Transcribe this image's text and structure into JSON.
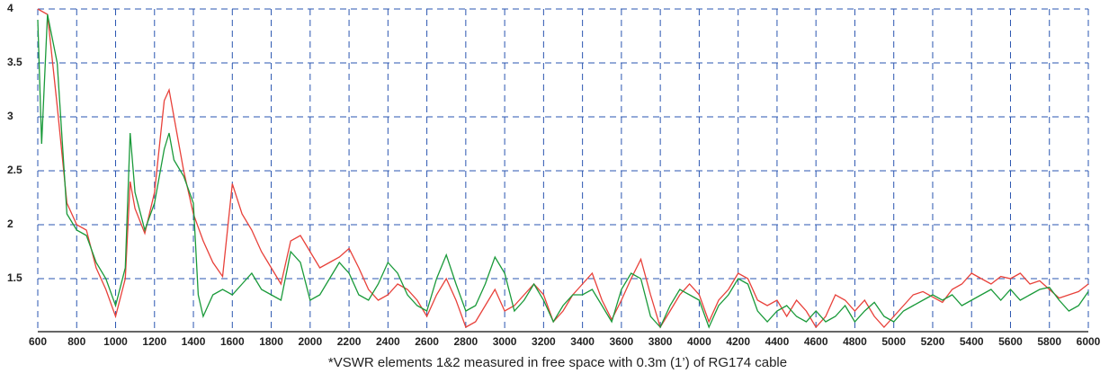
{
  "chart_data": {
    "type": "line",
    "caption": "*VSWR  elements 1&2 measured in free space with 0.3m (1’) of RG174 cable",
    "xlim": [
      600,
      6000
    ],
    "ylim": [
      1,
      4
    ],
    "xticks": [
      600,
      800,
      1000,
      1200,
      1400,
      1600,
      1800,
      2000,
      2200,
      2400,
      2600,
      2800,
      3000,
      3200,
      3400,
      3600,
      3800,
      4000,
      4200,
      4400,
      4600,
      4800,
      5000,
      5200,
      5400,
      5600,
      5800,
      6000
    ],
    "yticks": [
      1.5,
      2,
      2.5,
      3,
      3.5,
      4
    ],
    "grid": true,
    "grid_color": "#2a55b0",
    "series": [
      {
        "color": "#e8413a",
        "x": [
          600,
          650,
          700,
          750,
          800,
          850,
          900,
          950,
          1000,
          1050,
          1075,
          1100,
          1150,
          1200,
          1250,
          1275,
          1300,
          1350,
          1400,
          1450,
          1500,
          1550,
          1600,
          1650,
          1700,
          1750,
          1800,
          1850,
          1900,
          1950,
          2000,
          2050,
          2100,
          2150,
          2200,
          2250,
          2300,
          2350,
          2400,
          2450,
          2500,
          2550,
          2600,
          2650,
          2700,
          2750,
          2800,
          2850,
          2900,
          2950,
          3000,
          3050,
          3100,
          3150,
          3200,
          3250,
          3300,
          3350,
          3400,
          3450,
          3500,
          3550,
          3600,
          3650,
          3700,
          3750,
          3800,
          3850,
          3900,
          3950,
          4000,
          4050,
          4100,
          4150,
          4200,
          4250,
          4300,
          4350,
          4400,
          4450,
          4500,
          4550,
          4600,
          4650,
          4700,
          4750,
          4800,
          4850,
          4900,
          4950,
          5000,
          5050,
          5100,
          5150,
          5200,
          5250,
          5300,
          5350,
          5400,
          5450,
          5500,
          5550,
          5600,
          5650,
          5700,
          5750,
          5800,
          5850,
          5900,
          5950,
          6000
        ],
        "values": [
          4.0,
          3.95,
          3.1,
          2.2,
          2.0,
          1.95,
          1.6,
          1.4,
          1.15,
          1.5,
          2.4,
          2.15,
          1.92,
          2.3,
          3.15,
          3.25,
          3.0,
          2.5,
          2.1,
          1.85,
          1.65,
          1.52,
          2.38,
          2.1,
          1.95,
          1.75,
          1.6,
          1.45,
          1.85,
          1.9,
          1.75,
          1.6,
          1.65,
          1.7,
          1.78,
          1.6,
          1.4,
          1.3,
          1.35,
          1.45,
          1.4,
          1.3,
          1.15,
          1.35,
          1.5,
          1.3,
          1.05,
          1.1,
          1.25,
          1.4,
          1.2,
          1.25,
          1.35,
          1.45,
          1.35,
          1.1,
          1.2,
          1.35,
          1.45,
          1.55,
          1.3,
          1.12,
          1.3,
          1.5,
          1.68,
          1.35,
          1.05,
          1.2,
          1.35,
          1.45,
          1.35,
          1.1,
          1.3,
          1.4,
          1.55,
          1.5,
          1.3,
          1.25,
          1.3,
          1.15,
          1.3,
          1.2,
          1.05,
          1.15,
          1.35,
          1.3,
          1.2,
          1.3,
          1.15,
          1.05,
          1.15,
          1.25,
          1.35,
          1.38,
          1.33,
          1.28,
          1.4,
          1.45,
          1.55,
          1.5,
          1.45,
          1.52,
          1.5,
          1.55,
          1.45,
          1.48,
          1.4,
          1.32,
          1.35,
          1.38,
          1.45
        ]
      },
      {
        "color": "#1a9a3a",
        "x": [
          600,
          620,
          650,
          700,
          750,
          800,
          850,
          900,
          950,
          1000,
          1050,
          1075,
          1100,
          1150,
          1200,
          1250,
          1275,
          1300,
          1350,
          1400,
          1425,
          1450,
          1500,
          1550,
          1600,
          1650,
          1700,
          1750,
          1800,
          1850,
          1900,
          1950,
          2000,
          2050,
          2100,
          2150,
          2200,
          2250,
          2300,
          2350,
          2400,
          2450,
          2500,
          2550,
          2600,
          2650,
          2700,
          2750,
          2800,
          2850,
          2900,
          2950,
          3000,
          3050,
          3100,
          3150,
          3200,
          3250,
          3300,
          3350,
          3400,
          3450,
          3500,
          3550,
          3600,
          3650,
          3700,
          3750,
          3800,
          3850,
          3900,
          3950,
          4000,
          4050,
          4100,
          4150,
          4200,
          4250,
          4300,
          4350,
          4400,
          4450,
          4500,
          4550,
          4600,
          4650,
          4700,
          4750,
          4800,
          4850,
          4900,
          4950,
          5000,
          5050,
          5100,
          5150,
          5200,
          5250,
          5300,
          5350,
          5400,
          5450,
          5500,
          5550,
          5600,
          5650,
          5700,
          5750,
          5800,
          5850,
          5900,
          5950,
          6000
        ],
        "values": [
          3.9,
          2.75,
          3.95,
          3.5,
          2.1,
          1.95,
          1.9,
          1.65,
          1.5,
          1.25,
          1.6,
          2.85,
          2.3,
          1.95,
          2.2,
          2.7,
          2.85,
          2.6,
          2.45,
          2.2,
          1.35,
          1.15,
          1.35,
          1.4,
          1.35,
          1.45,
          1.55,
          1.4,
          1.35,
          1.3,
          1.75,
          1.65,
          1.3,
          1.35,
          1.5,
          1.65,
          1.55,
          1.35,
          1.3,
          1.45,
          1.65,
          1.55,
          1.35,
          1.25,
          1.2,
          1.5,
          1.72,
          1.45,
          1.2,
          1.25,
          1.45,
          1.7,
          1.55,
          1.2,
          1.3,
          1.45,
          1.3,
          1.1,
          1.25,
          1.35,
          1.35,
          1.4,
          1.25,
          1.1,
          1.4,
          1.55,
          1.5,
          1.15,
          1.05,
          1.25,
          1.4,
          1.35,
          1.3,
          1.05,
          1.25,
          1.35,
          1.5,
          1.45,
          1.2,
          1.1,
          1.2,
          1.25,
          1.15,
          1.1,
          1.2,
          1.1,
          1.15,
          1.25,
          1.1,
          1.2,
          1.28,
          1.15,
          1.1,
          1.2,
          1.25,
          1.3,
          1.35,
          1.3,
          1.35,
          1.25,
          1.3,
          1.35,
          1.4,
          1.3,
          1.4,
          1.3,
          1.35,
          1.4,
          1.42,
          1.3,
          1.2,
          1.25,
          1.38
        ]
      }
    ]
  }
}
